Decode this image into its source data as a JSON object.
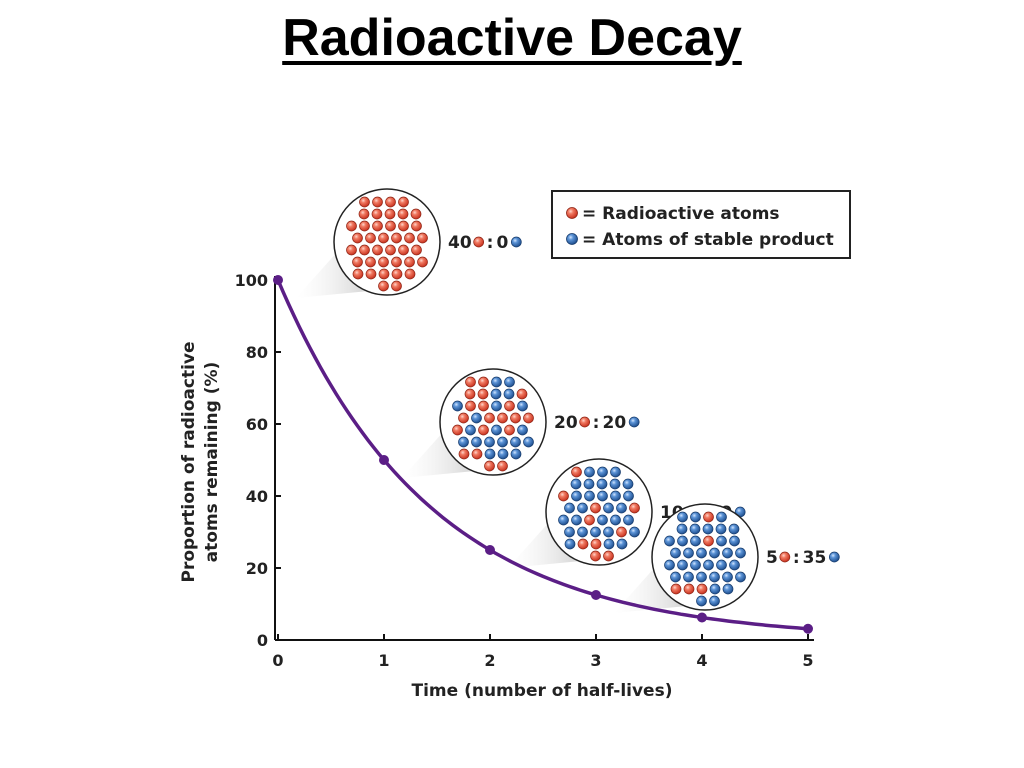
{
  "page": {
    "title": "Radioactive Decay"
  },
  "colors": {
    "curve": "#5b1e86",
    "radioactive_atom": "#e8503a",
    "stable_atom": "#2f6db4",
    "axis": "#111111"
  },
  "legend": {
    "placement": "top-right",
    "items": [
      {
        "label": "= Radioactive atoms",
        "atom": "radioactive"
      },
      {
        "label": "= Atoms of stable product",
        "atom": "stable"
      }
    ]
  },
  "chart_data": {
    "type": "line",
    "title": "",
    "xlabel": "Time (number of half-lives)",
    "ylabel": [
      "Proportion of radioactive",
      "atoms remaining (%)"
    ],
    "xlim": [
      0,
      5
    ],
    "ylim": [
      0,
      100
    ],
    "x_ticks": [
      "0",
      "1",
      "2",
      "3",
      "4",
      "5"
    ],
    "y_ticks": [
      "0",
      "20",
      "40",
      "60",
      "80",
      "100"
    ],
    "grid": false,
    "series": [
      {
        "x": [
          0,
          1,
          2,
          3,
          4,
          5
        ],
        "y": [
          100,
          50,
          25,
          12.5,
          6.25,
          3.125
        ]
      }
    ],
    "insets": [
      {
        "x": 0,
        "radioactive": 40,
        "stable": 0,
        "radioactive_label": "40",
        "stable_label": "0"
      },
      {
        "x": 1,
        "radioactive": 20,
        "stable": 20,
        "radioactive_label": "20",
        "stable_label": "20"
      },
      {
        "x": 2,
        "radioactive": 10,
        "stable": 30,
        "radioactive_label": "10",
        "stable_label": "30"
      },
      {
        "x": 3,
        "radioactive": 5,
        "stable": 35,
        "radioactive_label": "5",
        "stable_label": "35"
      }
    ],
    "ratio_separator": ":"
  }
}
